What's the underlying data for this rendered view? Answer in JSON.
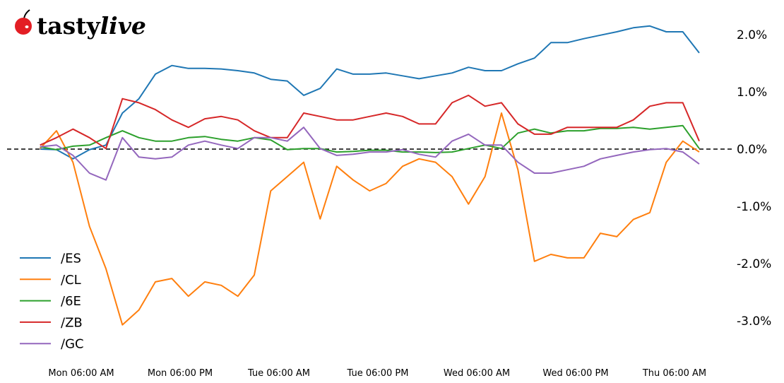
{
  "logo": {
    "text": "tastylive",
    "part1": "tasty",
    "part2": "live",
    "cherry_color": "#e31e24"
  },
  "chart_data": {
    "type": "line",
    "title": "",
    "xlabel": "",
    "ylabel": "",
    "ylim": [
      -3.5,
      2.4
    ],
    "y_axis_side": "right",
    "y_unit": "%",
    "grid": false,
    "legend_placement": "lower-left",
    "zero_line": {
      "value": 0.0,
      "style": "dashed",
      "color": "#000000"
    },
    "x_ticks": [
      "Mon 06:00 AM",
      "Mon 06:00 PM",
      "Tue 06:00 AM",
      "Tue 06:00 PM",
      "Wed 06:00 AM",
      "Wed 06:00 PM",
      "Thu 06:00 AM"
    ],
    "y_ticks": [
      {
        "value": 2.0,
        "label": "2.0%"
      },
      {
        "value": 1.0,
        "label": "1.0%"
      },
      {
        "value": 0.0,
        "label": "0.0%"
      },
      {
        "value": -1.0,
        "label": "-1.0%"
      },
      {
        "value": -2.0,
        "label": "-2.0%"
      },
      {
        "value": -3.0,
        "label": "-3.0%"
      }
    ],
    "x": [
      "Mon 01:00",
      "Mon 03:00",
      "Mon 05:00",
      "Mon 07:00",
      "Mon 09:00",
      "Mon 11:00",
      "Mon 13:00",
      "Mon 15:00",
      "Mon 17:00",
      "Mon 19:00",
      "Mon 21:00",
      "Mon 23:00",
      "Tue 01:00",
      "Tue 03:00",
      "Tue 05:00",
      "Tue 07:00",
      "Tue 09:00",
      "Tue 11:00",
      "Tue 13:00",
      "Tue 15:00",
      "Tue 17:00",
      "Tue 19:00",
      "Tue 21:00",
      "Tue 23:00",
      "Wed 01:00",
      "Wed 03:00",
      "Wed 05:00",
      "Wed 07:00",
      "Wed 09:00",
      "Wed 11:00",
      "Wed 13:00",
      "Wed 15:00",
      "Wed 17:00",
      "Wed 19:00",
      "Wed 21:00",
      "Wed 23:00",
      "Thu 01:00",
      "Thu 03:00",
      "Thu 05:00",
      "Thu 07:00",
      "Thu 09:00"
    ],
    "series": [
      {
        "name": "/ES",
        "color": "#1f77b4",
        "values": [
          0,
          -0.01,
          -0.17,
          -0.01,
          0.07,
          0.63,
          0.88,
          1.31,
          1.46,
          1.41,
          1.41,
          1.4,
          1.37,
          1.33,
          1.22,
          1.19,
          0.94,
          1.06,
          1.4,
          1.31,
          1.31,
          1.33,
          1.28,
          1.23,
          1.28,
          1.33,
          1.43,
          1.37,
          1.37,
          1.49,
          1.59,
          1.86,
          1.86,
          1.93,
          1.99,
          2.05,
          2.12,
          2.15,
          2.05,
          2.05,
          1.68
        ]
      },
      {
        "name": "/CL",
        "color": "#ff7f0e",
        "values": [
          0.01,
          0.32,
          -0.23,
          -1.35,
          -2.09,
          -3.07,
          -2.81,
          -2.32,
          -2.26,
          -2.57,
          -2.32,
          -2.38,
          -2.57,
          -2.2,
          -0.73,
          -0.48,
          -0.23,
          -1.22,
          -0.3,
          -0.54,
          -0.73,
          -0.6,
          -0.3,
          -0.17,
          -0.23,
          -0.48,
          -0.96,
          -0.48,
          0.63,
          -0.36,
          -1.96,
          -1.84,
          -1.9,
          -1.9,
          -1.47,
          -1.53,
          -1.23,
          -1.11,
          -0.23,
          0.14,
          -0.05
        ]
      },
      {
        "name": "/6E",
        "color": "#2ca02c",
        "values": [
          0.04,
          -0.01,
          0.05,
          0.07,
          0.2,
          0.32,
          0.2,
          0.14,
          0.14,
          0.2,
          0.22,
          0.17,
          0.14,
          0.2,
          0.16,
          -0.01,
          0.01,
          0.01,
          -0.05,
          -0.04,
          -0.02,
          -0.02,
          -0.05,
          -0.05,
          -0.06,
          -0.05,
          0.01,
          0.07,
          0.01,
          0.28,
          0.35,
          0.28,
          0.32,
          0.32,
          0.36,
          0.36,
          0.38,
          0.35,
          0.38,
          0.41,
          0.01
        ]
      },
      {
        "name": "/ZB",
        "color": "#d62728",
        "values": [
          0.07,
          0.2,
          0.35,
          0.2,
          0.01,
          0.88,
          0.81,
          0.69,
          0.51,
          0.38,
          0.53,
          0.57,
          0.51,
          0.32,
          0.2,
          0.2,
          0.63,
          0.57,
          0.51,
          0.51,
          0.57,
          0.63,
          0.57,
          0.44,
          0.44,
          0.81,
          0.94,
          0.75,
          0.81,
          0.44,
          0.26,
          0.26,
          0.38,
          0.38,
          0.38,
          0.38,
          0.51,
          0.75,
          0.81,
          0.81,
          0.14
        ]
      },
      {
        "name": "/GC",
        "color": "#9467bd",
        "values": [
          0.04,
          0.07,
          -0.11,
          -0.42,
          -0.54,
          0.2,
          -0.14,
          -0.17,
          -0.14,
          0.07,
          0.14,
          0.07,
          0.01,
          0.2,
          0.2,
          0.14,
          0.38,
          0.01,
          -0.11,
          -0.09,
          -0.05,
          -0.05,
          -0.01,
          -0.09,
          -0.14,
          0.14,
          0.26,
          0.07,
          0.07,
          -0.23,
          -0.42,
          -0.42,
          -0.36,
          -0.3,
          -0.17,
          -0.11,
          -0.05,
          -0.01,
          0.01,
          -0.05,
          -0.26
        ]
      }
    ]
  }
}
